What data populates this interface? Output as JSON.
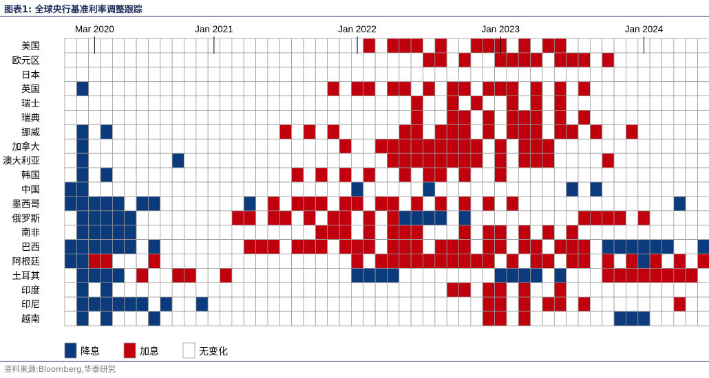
{
  "figure": {
    "title": "图表1:  全球央行基准利率调整跟踪",
    "source": "资料来源:Bloomberg,华泰研究"
  },
  "colors": {
    "cut": "#0b3a7d",
    "hike": "#c0000d",
    "unchanged": "#ffffff",
    "grid": "#9a9a9a"
  },
  "chart_data": {
    "type": "heatmap",
    "title": "",
    "legend_position": "bottom-left",
    "legend": [
      {
        "code": 1,
        "label": "降息"
      },
      {
        "code": 2,
        "label": "加息"
      },
      {
        "code": 0,
        "label": "无变化"
      }
    ],
    "value_codes": {
      "0": "无变化",
      "1": "降息",
      "2": "加息"
    },
    "x": [
      "2020-01",
      "2020-02",
      "2020-03",
      "2020-04",
      "2020-05",
      "2020-06",
      "2020-07",
      "2020-08",
      "2020-09",
      "2020-10",
      "2020-11",
      "2020-12",
      "2021-01",
      "2021-02",
      "2021-03",
      "2021-04",
      "2021-05",
      "2021-06",
      "2021-07",
      "2021-08",
      "2021-09",
      "2021-10",
      "2021-11",
      "2021-12",
      "2022-01",
      "2022-02",
      "2022-03",
      "2022-04",
      "2022-05",
      "2022-06",
      "2022-07",
      "2022-08",
      "2022-09",
      "2022-10",
      "2022-11",
      "2022-12",
      "2023-01",
      "2023-02",
      "2023-03",
      "2023-04",
      "2023-05",
      "2023-06",
      "2023-07",
      "2023-08",
      "2023-09",
      "2023-10",
      "2023-11",
      "2023-12",
      "2024-01",
      "2024-02",
      "2024-03",
      "2024-04",
      "2024-05",
      "2024-06",
      "2024-07",
      "2024-08",
      "2024-09"
    ],
    "x_ticks": [
      {
        "label": "Mar 2020",
        "x": "2020-03"
      },
      {
        "label": "Jan 2021",
        "x": "2021-01"
      },
      {
        "label": "Jan 2022",
        "x": "2022-01"
      },
      {
        "label": "Jan 2023",
        "x": "2023-01"
      },
      {
        "label": "Jan 2024",
        "x": "2024-01"
      }
    ],
    "y": [
      "美国",
      "欧元区",
      "日本",
      "英国",
      "瑞士",
      "瑞典",
      "挪威",
      "加拿大",
      "澳大利亚",
      "韩国",
      "中国",
      "墨西哥",
      "俄罗斯",
      "南非",
      "巴西",
      "阿根廷",
      "土耳其",
      "印度",
      "印尼",
      "越南"
    ],
    "rows": [
      "000000000000000000000000020222020022202022000000000000000",
      "000000000000000000000000000000220200222202220200000000001",
      "000000000000000000000000000000000000000000000000000000200",
      "010000000000000000000020220220202202220202020000000000000",
      "000000000000000000000000000002002020020202000000000000101",
      "000000000000000000000000000002002202022202020000000000010",
      "010100000000000000202020000022022202022202202002000000000",
      "010000000000000000000002002222222220202220000000000000001",
      "010000000100000000000000000222222220202220000200000000000",
      "010100000000000000020202020020220200200000000000000000000",
      "110000000000000000000000100000100000000000101000000000000",
      "111110110000000102022202202202020202020000000000000100000",
      "011111000000002202202022020211110100000000022220200000000",
      "011111000000000000000222020222000202202020200000000000000",
      "111111010000000222022202220222022202202202220111111001110",
      "112200020000000000000000202222222222020220220202120202111",
      "011110200220020000000000111100000000111101000222222220200",
      "010100000000000000000000000000002202202002000000000000000",
      "011111101001000000000000000000000002202022020000000200020",
      "010100010000000000000000000000000002202000000011100000000"
    ]
  }
}
